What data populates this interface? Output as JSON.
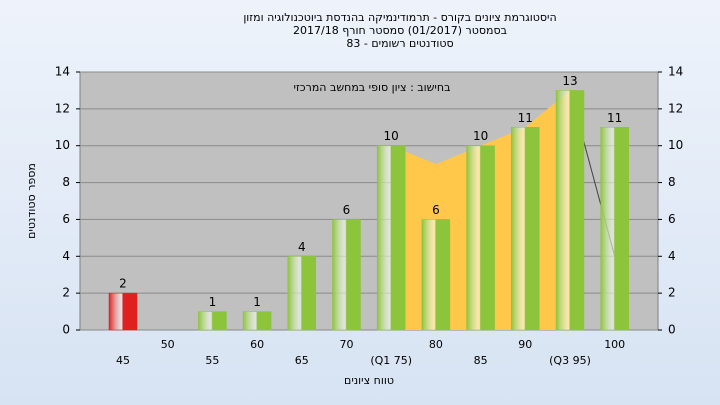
{
  "chart_data": {
    "type": "bar",
    "title": [
      "היסטוגרמת ציונים בקורס - תרמודינמיקה בהנדסת ביוטכנולוגיה ומזון",
      "בסמסטר  (01/2017)  סמסטר חורף 2017/18",
      "סטודנטים רשומים - 83"
    ],
    "annotation": "בחישוב : ציון סופי במחשב המרכזי",
    "ylabel": "מספר סטודנטים",
    "xlabel": "טווח ציונים",
    "categories": [
      "45",
      "50",
      "55",
      "60",
      "65",
      "70",
      "(Q1 75)",
      "80",
      "85",
      "90",
      "(Q3 95)",
      "100"
    ],
    "values": [
      2,
      null,
      1,
      1,
      4,
      6,
      10,
      6,
      10,
      11,
      13,
      11
    ],
    "colors": [
      "#e02020",
      null,
      "#8cc43c",
      "#8cc43c",
      "#8cc43c",
      "#8cc43c",
      "#8cc43c",
      "#8cc43c",
      "#8cc43c",
      "#8cc43c",
      "#8cc43c",
      "#8cc43c"
    ],
    "area": {
      "color": "#ffc84a",
      "values": [
        null,
        null,
        null,
        null,
        null,
        null,
        10,
        9,
        10,
        11,
        13,
        null
      ]
    },
    "line": {
      "color": "#404040",
      "values": [
        null,
        null,
        null,
        null,
        null,
        null,
        null,
        null,
        null,
        null,
        13,
        4
      ]
    },
    "ylim": [
      0,
      14
    ],
    "yticks": [
      0,
      2,
      4,
      6,
      8,
      10,
      12,
      14
    ],
    "y2lim": [
      0,
      14
    ],
    "y2ticks": [
      0,
      2,
      4,
      6,
      8,
      10,
      12,
      14
    ]
  }
}
